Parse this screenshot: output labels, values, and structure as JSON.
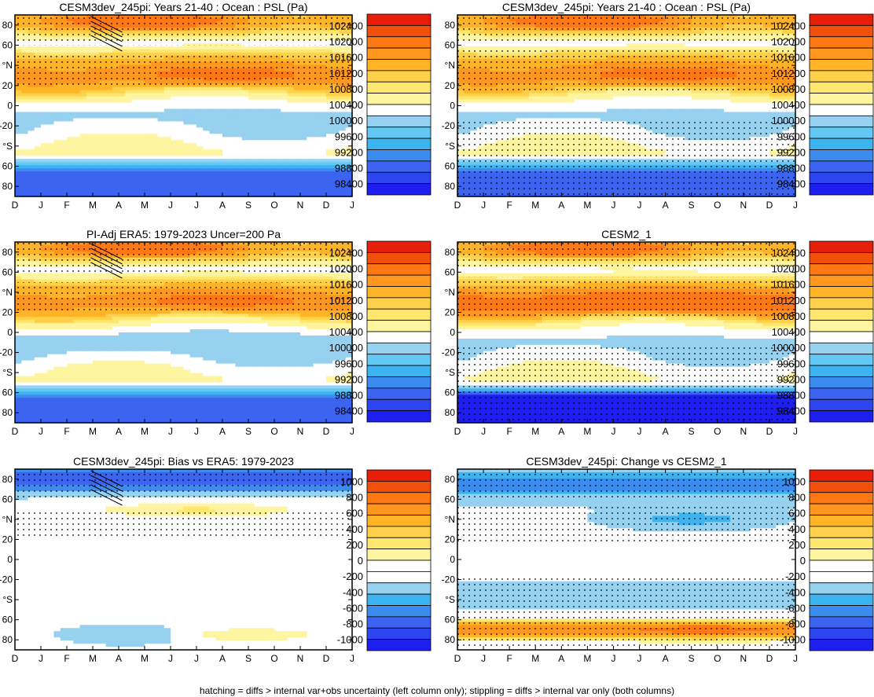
{
  "figure": {
    "footnote": "hatching = diffs > internal var+obs uncertainty (left column only); stippling = diffs > internal var only (both columns)"
  },
  "colors": {
    "full_scale": [
      "#1e1ef0",
      "#2c45f0",
      "#3c64f0",
      "#3c8cf0",
      "#3cb4f0",
      "#64c8f5",
      "#96d2f0",
      "#ffffff",
      "#fff5a0",
      "#ffe66e",
      "#ffd04a",
      "#ffb428",
      "#ff961e",
      "#ff7814",
      "#f0500a",
      "#e61e0a"
    ],
    "diff_scale": [
      "#1e1ef0",
      "#2c45f0",
      "#3c64f0",
      "#3c8cf0",
      "#3cb4f0",
      "#96d2f0",
      "#ffffff",
      "#ffffff",
      "#fff5a0",
      "#ffe66e",
      "#ffd04a",
      "#ffb428",
      "#ff961e",
      "#ff7814",
      "#f0500a",
      "#e61e0a"
    ]
  },
  "chart_data": [
    {
      "type": "heatmap",
      "title": "CESM3dev_245pi: Years 21-40 : Ocean : PSL (Pa)",
      "x_ticks": [
        "D",
        "J",
        "F",
        "M",
        "A",
        "M",
        "J",
        "J",
        "A",
        "S",
        "O",
        "N",
        "D",
        "J"
      ],
      "y_ticks": [
        "80",
        "60",
        "°N",
        "20",
        "0",
        "-20",
        "°S",
        "60",
        "80"
      ],
      "y_range": [
        -90,
        90
      ],
      "colorbar": [
        "102400",
        "102000",
        "101600",
        "101200",
        "100800",
        "100400",
        "100000",
        "99600",
        "99200",
        "98800",
        "98400"
      ],
      "colorbar_type": "full",
      "field": "full",
      "hatching": true,
      "stipple_bands": [
        [
          60,
          90
        ],
        [
          20,
          50
        ],
        [
          -15,
          -12
        ]
      ]
    },
    {
      "type": "heatmap",
      "title": "CESM3dev_245pi: Years 21-40 : Ocean : PSL (Pa)",
      "x_ticks": [
        "D",
        "J",
        "F",
        "M",
        "A",
        "M",
        "J",
        "J",
        "A",
        "S",
        "O",
        "N",
        "D",
        "J"
      ],
      "y_ticks": [
        "80",
        "60",
        "°N",
        "20",
        "0",
        "-20",
        "°S",
        "60",
        "80"
      ],
      "y_range": [
        -90,
        90
      ],
      "colorbar": [
        "102400",
        "102000",
        "101600",
        "101200",
        "100800",
        "100400",
        "100000",
        "99600",
        "99200",
        "98800",
        "98400"
      ],
      "colorbar_type": "full",
      "field": "full",
      "hatching": false,
      "stipple_bands": [
        [
          62,
          90
        ],
        [
          15,
          55
        ],
        [
          -90,
          -15
        ]
      ]
    },
    {
      "type": "heatmap",
      "title": "PI-Adj ERA5: 1979-2023 Uncer=200 Pa",
      "x_ticks": [
        "D",
        "J",
        "F",
        "M",
        "A",
        "M",
        "J",
        "J",
        "A",
        "S",
        "O",
        "N",
        "D",
        "J"
      ],
      "y_ticks": [
        "80",
        "60",
        "°N",
        "20",
        "0",
        "-20",
        "°S",
        "60",
        "80"
      ],
      "y_range": [
        -90,
        90
      ],
      "colorbar": [
        "102400",
        "102000",
        "101600",
        "101200",
        "100800",
        "100400",
        "100000",
        "99600",
        "99200",
        "98800",
        "98400"
      ],
      "colorbar_type": "full",
      "field": "era5",
      "hatching": true,
      "stipple_bands": [
        [
          60,
          90
        ],
        [
          20,
          50
        ]
      ]
    },
    {
      "type": "heatmap",
      "title": "CESM2_1",
      "x_ticks": [
        "D",
        "J",
        "F",
        "M",
        "A",
        "M",
        "J",
        "J",
        "A",
        "S",
        "O",
        "N",
        "D",
        "J"
      ],
      "y_ticks": [
        "80",
        "60",
        "°N",
        "20",
        "0",
        "-20",
        "°S",
        "60",
        "80"
      ],
      "y_range": [
        -90,
        90
      ],
      "colorbar": [
        "102400",
        "102000",
        "101600",
        "101200",
        "100800",
        "100400",
        "100000",
        "99600",
        "99200",
        "98800",
        "98400"
      ],
      "colorbar_type": "full",
      "field": "cesm2",
      "hatching": false,
      "stipple_bands": [
        [
          62,
          90
        ],
        [
          15,
          55
        ],
        [
          -90,
          -15
        ]
      ]
    },
    {
      "type": "heatmap",
      "title": "CESM3dev_245pi: Bias vs ERA5: 1979-2023",
      "x_ticks": [
        "D",
        "J",
        "F",
        "M",
        "A",
        "M",
        "J",
        "J",
        "A",
        "S",
        "O",
        "N",
        "D",
        "J"
      ],
      "y_ticks": [
        "80",
        "60",
        "°N",
        "20",
        "0",
        "-20",
        "°S",
        "60",
        "80"
      ],
      "y_range": [
        -90,
        90
      ],
      "colorbar": [
        "1000",
        "800",
        "600",
        "400",
        "200",
        "0",
        "-200",
        "-400",
        "-600",
        "-800",
        "-1000"
      ],
      "colorbar_type": "diff",
      "field": "bias",
      "hatching": true,
      "stipple_bands": [
        [
          60,
          90
        ],
        [
          20,
          50
        ]
      ]
    },
    {
      "type": "heatmap",
      "title": "CESM3dev_245pi: Change vs CESM2_1",
      "x_ticks": [
        "D",
        "J",
        "F",
        "M",
        "A",
        "M",
        "J",
        "J",
        "A",
        "S",
        "O",
        "N",
        "D",
        "J"
      ],
      "y_ticks": [
        "80",
        "60",
        "°N",
        "20",
        "0",
        "-20",
        "°S",
        "60",
        "80"
      ],
      "y_range": [
        -90,
        90
      ],
      "colorbar": [
        "1000",
        "800",
        "600",
        "400",
        "200",
        "0",
        "-200",
        "-400",
        "-600",
        "-800",
        "-1000"
      ],
      "colorbar_type": "diff",
      "field": "change",
      "hatching": false,
      "stipple_bands": [
        [
          60,
          90
        ],
        [
          15,
          55
        ],
        [
          -90,
          -18
        ]
      ]
    }
  ]
}
